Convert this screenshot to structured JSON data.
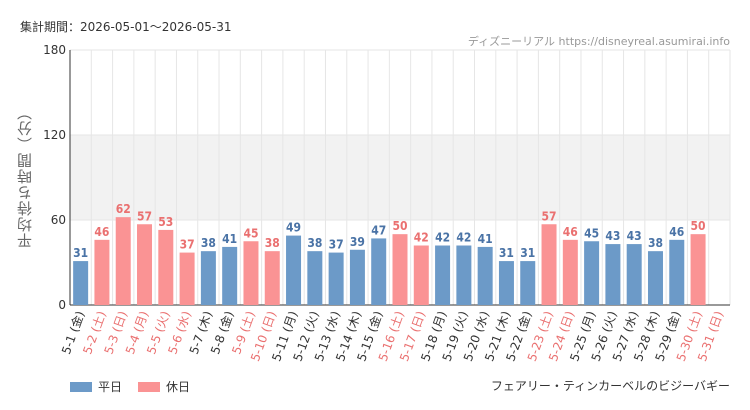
{
  "header": {
    "period": "集計期間：2026-05-01～2026-05-31",
    "source": "ディズニーリアル https://disneyreal.asumirai.info"
  },
  "footer": {
    "attraction": "フェアリー・ティンカーベルのビジーバギー"
  },
  "colors": {
    "weekday": "#6c9ac8",
    "holiday": "#fa9394",
    "weekday_label": "#4a73a6",
    "holiday_label": "#ea7070",
    "tick_weekday": "#333333",
    "tick_holiday": "#ea7070",
    "band": "#f2f2f2",
    "grid": "#e6e6e6",
    "axis": "#333333"
  },
  "chart_data": {
    "type": "bar",
    "title": "",
    "xlabel": "",
    "ylabel": "平均待ち時間（分）",
    "ylim": [
      0,
      180
    ],
    "yticks": [
      0,
      60,
      120,
      180
    ],
    "highlight_band": [
      60,
      120
    ],
    "grid": true,
    "legend_position": "bottom-left",
    "series_names": {
      "weekday": "平日",
      "holiday": "休日"
    },
    "categories": [
      "5-1 (金)",
      "5-2 (土)",
      "5-3 (日)",
      "5-4 (月)",
      "5-5 (火)",
      "5-6 (水)",
      "5-7 (木)",
      "5-8 (金)",
      "5-9 (土)",
      "5-10 (日)",
      "5-11 (月)",
      "5-12 (火)",
      "5-13 (水)",
      "5-14 (木)",
      "5-15 (金)",
      "5-16 (土)",
      "5-17 (日)",
      "5-18 (月)",
      "5-19 (火)",
      "5-20 (水)",
      "5-21 (木)",
      "5-22 (金)",
      "5-23 (土)",
      "5-24 (日)",
      "5-25 (月)",
      "5-26 (火)",
      "5-27 (水)",
      "5-28 (木)",
      "5-29 (金)",
      "5-30 (土)",
      "5-31 (日)"
    ],
    "values": [
      31,
      46,
      62,
      57,
      53,
      37,
      38,
      41,
      45,
      38,
      49,
      38,
      37,
      39,
      47,
      50,
      42,
      42,
      42,
      41,
      31,
      31,
      57,
      46,
      45,
      43,
      43,
      38,
      46,
      50,
      null
    ],
    "day_type": [
      "weekday",
      "holiday",
      "holiday",
      "holiday",
      "holiday",
      "holiday",
      "weekday",
      "weekday",
      "holiday",
      "holiday",
      "weekday",
      "weekday",
      "weekday",
      "weekday",
      "weekday",
      "holiday",
      "holiday",
      "weekday",
      "weekday",
      "weekday",
      "weekday",
      "weekday",
      "holiday",
      "holiday",
      "weekday",
      "weekday",
      "weekday",
      "weekday",
      "weekday",
      "holiday",
      "holiday"
    ]
  }
}
